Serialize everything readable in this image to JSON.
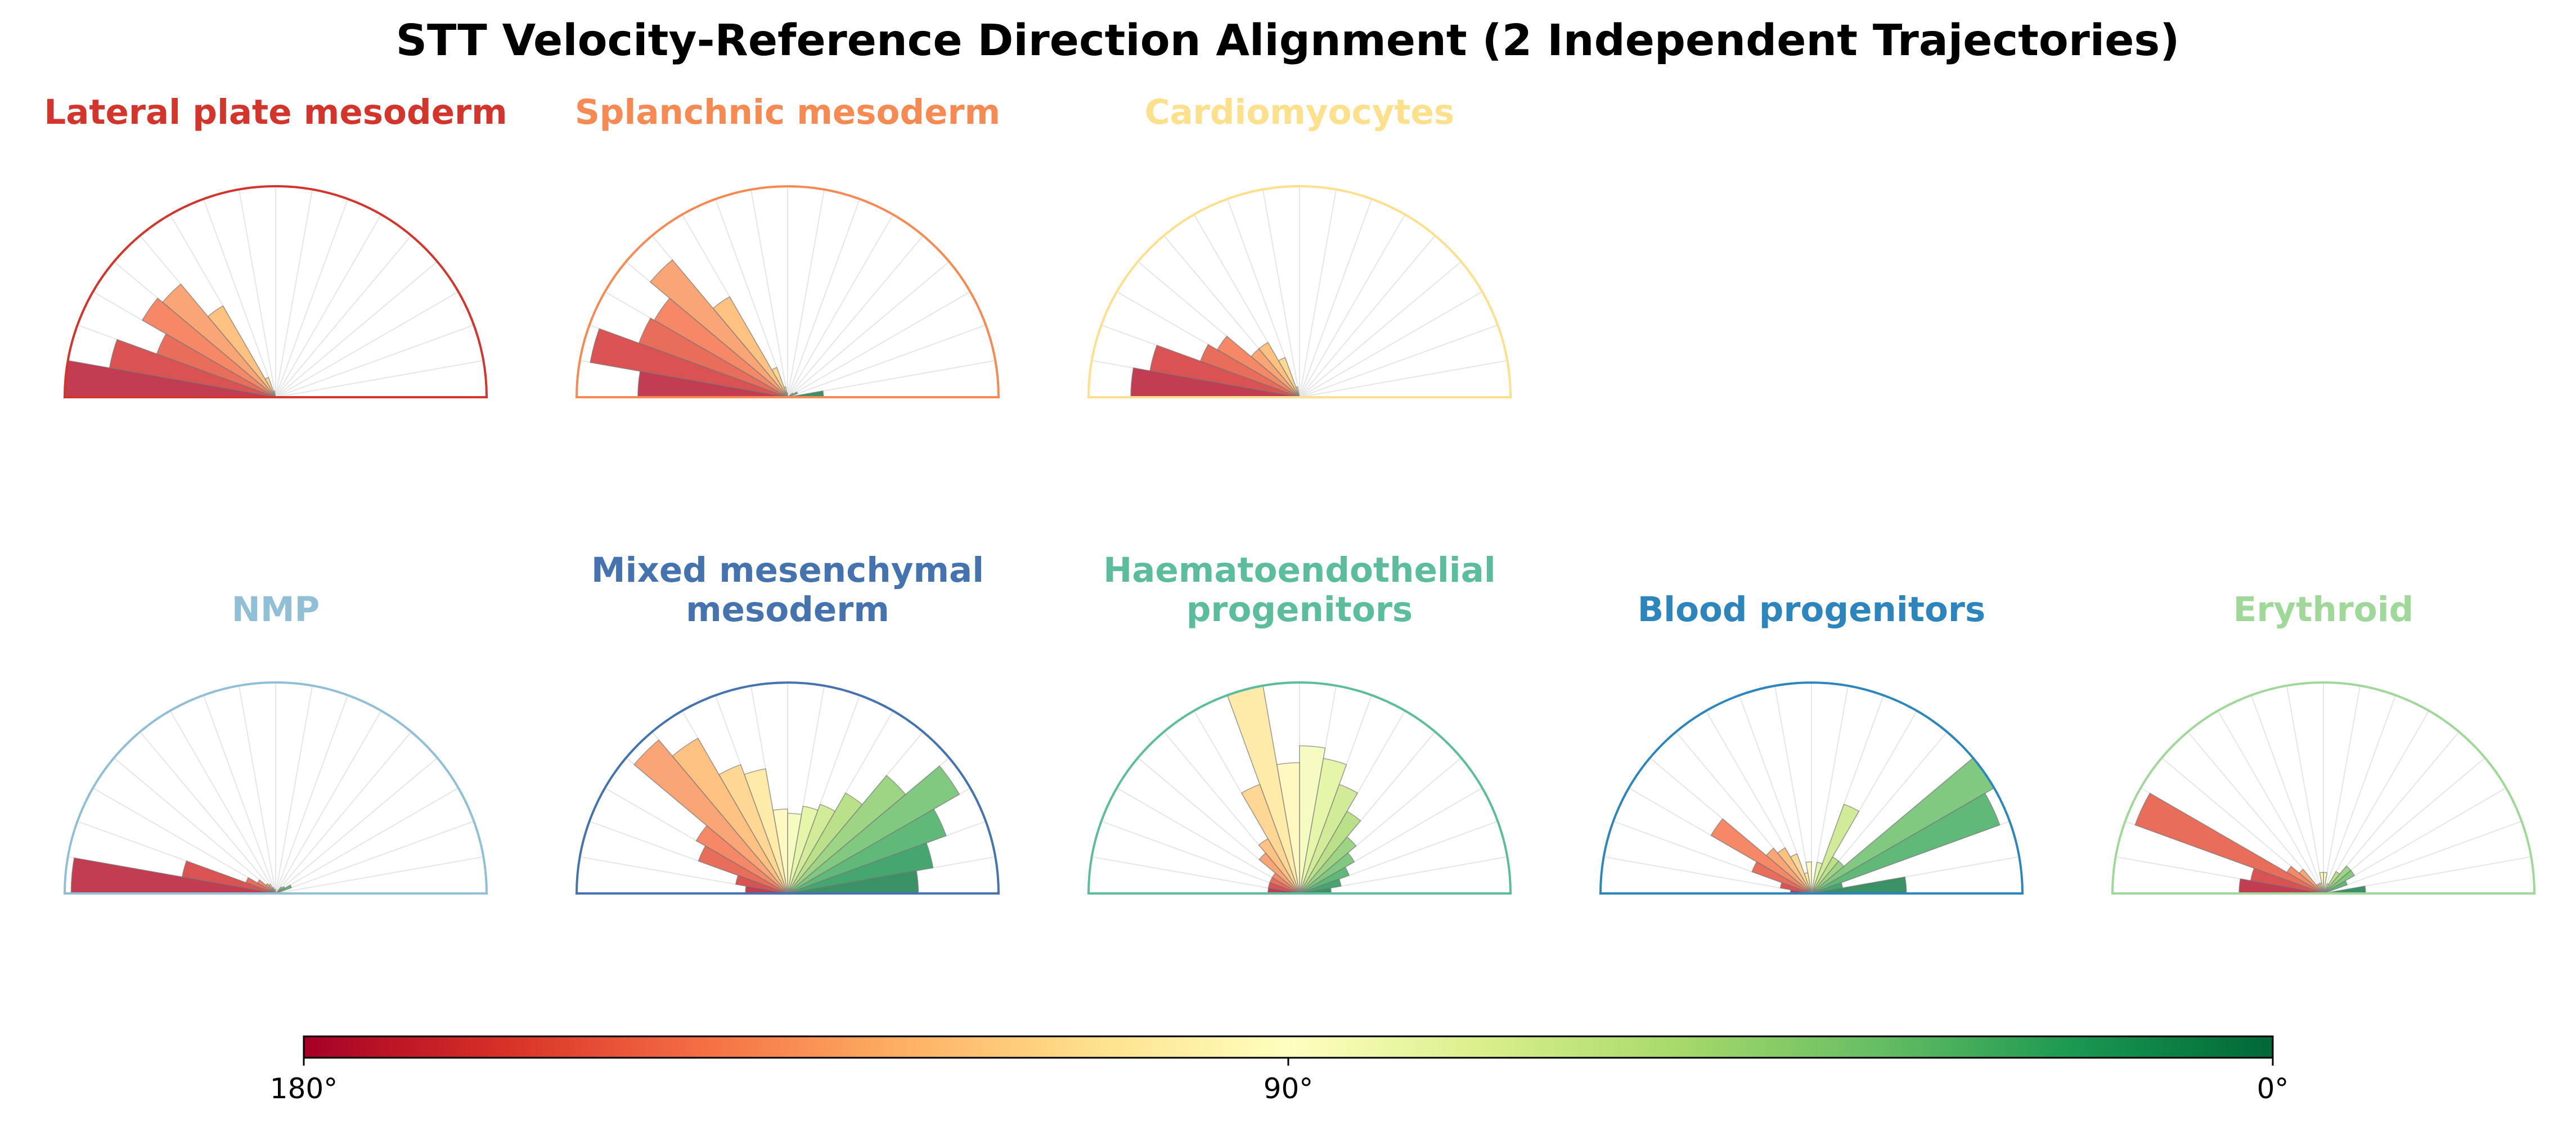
{
  "chart_data": {
    "type": "polar-histogram",
    "title": "STT Velocity-Reference Direction Alignment (2 Independent Trajectories)",
    "theta_range_deg": [
      0,
      180
    ],
    "bin_width_deg": 10,
    "bin_centers_deg": [
      5,
      15,
      25,
      35,
      45,
      55,
      65,
      75,
      85,
      95,
      105,
      115,
      125,
      135,
      145,
      155,
      165,
      175
    ],
    "r_scale_note": "bar length as fraction of semicircle radius",
    "panels": [
      {
        "name": "Lateral plate mesoderm",
        "color": "#d3342b",
        "values": [
          0,
          0,
          0,
          0,
          0,
          0,
          0,
          0,
          0,
          0,
          0.03,
          0.1,
          0.5,
          0.7,
          0.73,
          0.6,
          0.8,
          1.0
        ]
      },
      {
        "name": "Splanchnic mesoderm",
        "color": "#f68a52",
        "values": [
          0.17,
          0,
          0.05,
          0.03,
          0,
          0,
          0,
          0,
          0,
          0.02,
          0.05,
          0.15,
          0.55,
          0.85,
          0.73,
          0.75,
          0.95,
          0.71
        ]
      },
      {
        "name": "Cardiomyocytes",
        "color": "#fde08b",
        "values": [
          0,
          0,
          0,
          0,
          0,
          0,
          0,
          0,
          0,
          0,
          0.05,
          0.2,
          0.3,
          0.3,
          0.45,
          0.5,
          0.72,
          0.8
        ]
      },
      {
        "name": "NMP",
        "color": "#91bfd6",
        "values": [
          0,
          0,
          0.08,
          0.05,
          0.04,
          0,
          0,
          0,
          0,
          0.02,
          0,
          0.03,
          0.05,
          0.06,
          0.1,
          0.15,
          0.45,
          0.97
        ]
      },
      {
        "name": "Mixed mesenchymal\nmesoderm",
        "color": "#4573b0",
        "values": [
          0.62,
          0.7,
          0.8,
          0.94,
          0.73,
          0.55,
          0.45,
          0.42,
          0.38,
          0.4,
          0.6,
          0.65,
          0.85,
          0.95,
          0.5,
          0.45,
          0.25,
          0.2
        ]
      },
      {
        "name": "Haematoendothelial\nprogenitors",
        "color": "#5bbd9e",
        "values": [
          0.15,
          0.2,
          0.25,
          0.3,
          0.35,
          0.45,
          0.55,
          0.65,
          0.7,
          0.62,
          1.0,
          0.55,
          0.3,
          0.25,
          0.15,
          0.15,
          0.15,
          0.15
        ]
      },
      {
        "name": "Blood progenitors",
        "color": "#2c86bd",
        "values": [
          0.45,
          0.15,
          0.95,
          1.0,
          0.2,
          0.2,
          0.45,
          0.15,
          0,
          0.15,
          0.1,
          0.2,
          0.25,
          0.28,
          0.55,
          0.3,
          0.15,
          0.1
        ]
      },
      {
        "name": "Erythroid",
        "color": "#a0d89a",
        "values": [
          0.2,
          0,
          0.12,
          0.17,
          0.17,
          0.12,
          0.05,
          0.02,
          0.1,
          0.1,
          0.05,
          0.05,
          0.05,
          0.15,
          0.2,
          0.95,
          0.35,
          0.4
        ]
      }
    ],
    "colorbar": {
      "ticks": [
        {
          "value": 180,
          "label": "180°"
        },
        {
          "value": 90,
          "label": "90°"
        },
        {
          "value": 0,
          "label": "0°"
        }
      ],
      "colormap": "RdYlGn",
      "range": [
        180,
        0
      ]
    }
  }
}
